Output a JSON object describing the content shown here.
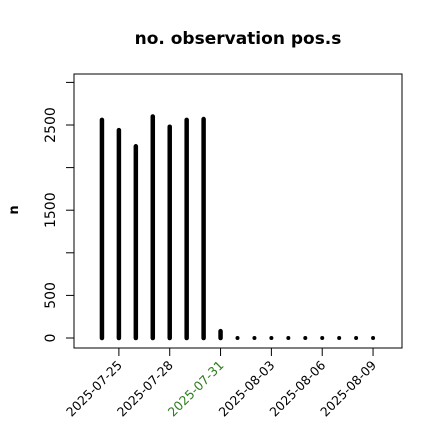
{
  "chart_data": {
    "type": "bar",
    "title": "no. observation pos.s",
    "xlabel": "",
    "ylabel": "n",
    "ylim": [
      -80,
      3050
    ],
    "y_ticks": [
      0,
      500,
      1500,
      2500
    ],
    "y_minor_ticks": [
      1000,
      2000,
      3000
    ],
    "x_range": [
      "2025-07-23",
      "2025-08-10"
    ],
    "x_ticks": [
      {
        "label": "2025-07-25",
        "date": "2025-07-25",
        "color": "#000000"
      },
      {
        "label": "2025-07-28",
        "date": "2025-07-28",
        "color": "#000000"
      },
      {
        "label": "2025-07-31",
        "date": "2025-07-31",
        "color": "#2e7d1e"
      },
      {
        "label": "2025-08-03",
        "date": "2025-08-03",
        "color": "#000000"
      },
      {
        "label": "2025-08-06",
        "date": "2025-08-06",
        "color": "#000000"
      },
      {
        "label": "2025-08-09",
        "date": "2025-08-09",
        "color": "#000000"
      }
    ],
    "bars": [
      {
        "date": "2025-07-24",
        "value": 2560
      },
      {
        "date": "2025-07-25",
        "value": 2440
      },
      {
        "date": "2025-07-26",
        "value": 2250
      },
      {
        "date": "2025-07-27",
        "value": 2600
      },
      {
        "date": "2025-07-28",
        "value": 2480
      },
      {
        "date": "2025-07-29",
        "value": 2560
      },
      {
        "date": "2025-07-30",
        "value": 2570
      },
      {
        "date": "2025-07-31",
        "value": 80
      },
      {
        "date": "2025-08-01",
        "value": 5
      },
      {
        "date": "2025-08-02",
        "value": 5
      },
      {
        "date": "2025-08-03",
        "value": 5
      },
      {
        "date": "2025-08-04",
        "value": 5
      },
      {
        "date": "2025-08-05",
        "value": 5
      },
      {
        "date": "2025-08-06",
        "value": 5
      },
      {
        "date": "2025-08-07",
        "value": 5
      },
      {
        "date": "2025-08-08",
        "value": 5
      },
      {
        "date": "2025-08-09",
        "value": 5
      }
    ],
    "bar_color": "#000000",
    "grid": false,
    "legend": "none"
  }
}
